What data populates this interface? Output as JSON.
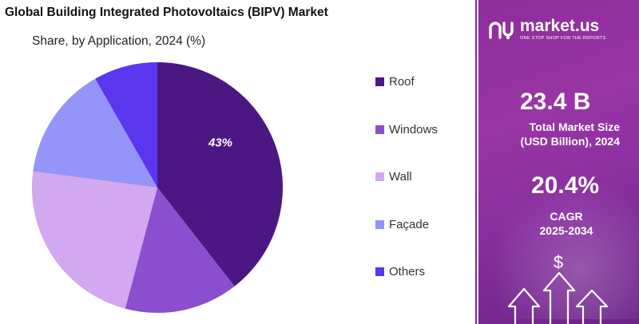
{
  "chart_data": {
    "type": "pie",
    "title": "Global Building Integrated Photovoltaics (BIPV) Market",
    "subtitle": "Share, by Application, 2024 (%)",
    "categories": [
      "Roof",
      "Windows",
      "Wall",
      "Façade",
      "Others"
    ],
    "values": [
      43,
      16,
      25,
      16,
      9
    ],
    "data_labels": [
      "43%",
      "",
      "",
      "",
      ""
    ],
    "colors": [
      "#4b1883",
      "#8a4fcf",
      "#d2a8f0",
      "#9594f9",
      "#5a37ee"
    ],
    "legend": "right"
  },
  "sidebar": {
    "brand_name": "market.us",
    "brand_tagline": "ONE STOP SHOP FOR THE REPORTS",
    "market_size_value": "23.4 B",
    "market_size_label_line1": "Total Market Size",
    "market_size_label_line2": "(USD Billion), 2024",
    "cagr_value": "20.4%",
    "cagr_label_line1": "CAGR",
    "cagr_label_line2": "2025-2034",
    "currency_symbol": "$"
  }
}
